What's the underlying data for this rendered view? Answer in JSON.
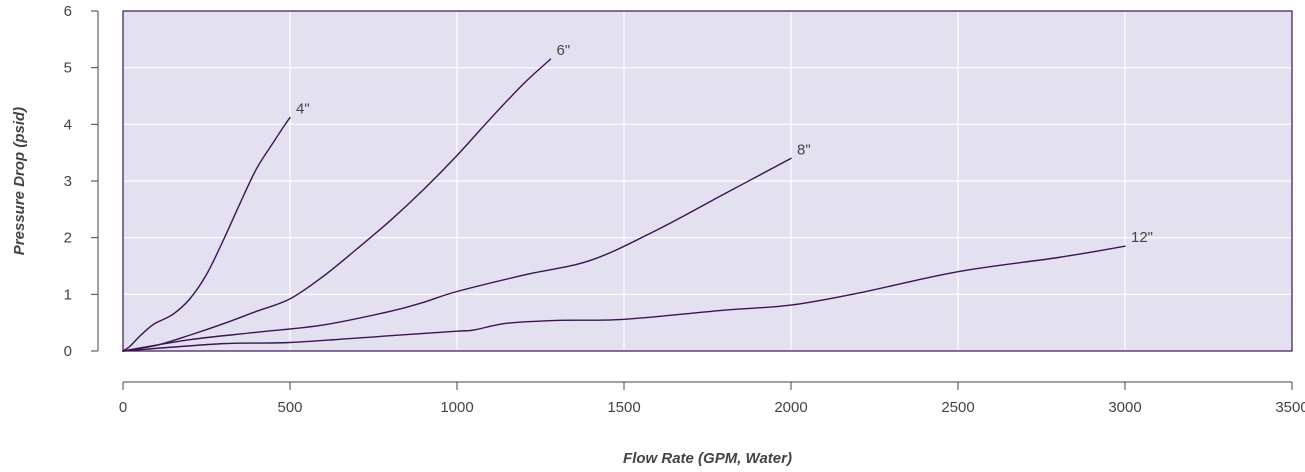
{
  "chart_data": {
    "type": "line",
    "title": "",
    "xlabel": "Flow Rate (GPM, Water)",
    "ylabel": "Pressure Drop (psid)",
    "xlim": [
      0,
      3500
    ],
    "ylim": [
      0,
      6
    ],
    "x_ticks": [
      0,
      500,
      1000,
      1500,
      2000,
      2500,
      3000,
      3500
    ],
    "y_ticks": [
      0,
      1,
      2,
      3,
      4,
      5,
      6
    ],
    "grid": true,
    "legend": "none",
    "colors": {
      "plot_background": "#e3e0ef",
      "line": "#3b1452",
      "grid": "#ffffff",
      "axis": "#444444"
    },
    "series": [
      {
        "name": "4\"",
        "x": [
          0,
          20,
          50,
          80,
          100,
          150,
          200,
          250,
          300,
          350,
          400,
          450,
          480,
          500
        ],
        "y": [
          0,
          0.08,
          0.26,
          0.42,
          0.5,
          0.65,
          0.92,
          1.35,
          1.95,
          2.6,
          3.22,
          3.68,
          3.95,
          4.12
        ]
      },
      {
        "name": "6\"",
        "x": [
          0,
          100,
          200,
          300,
          400,
          500,
          600,
          700,
          800,
          900,
          1000,
          1100,
          1200,
          1280
        ],
        "y": [
          0,
          0.1,
          0.28,
          0.48,
          0.7,
          0.92,
          1.32,
          1.8,
          2.3,
          2.85,
          3.45,
          4.1,
          4.72,
          5.15
        ]
      },
      {
        "name": "8\"",
        "x": [
          0,
          200,
          400,
          600,
          800,
          900,
          1000,
          1200,
          1400,
          1600,
          1800,
          2000
        ],
        "y": [
          0,
          0.2,
          0.33,
          0.46,
          0.7,
          0.86,
          1.05,
          1.34,
          1.6,
          2.14,
          2.77,
          3.4
        ]
      },
      {
        "name": "12\"",
        "x": [
          0,
          300,
          500,
          800,
          1000,
          1050,
          1150,
          1300,
          1500,
          1800,
          2000,
          2200,
          2500,
          2800,
          3000
        ],
        "y": [
          0,
          0.13,
          0.15,
          0.27,
          0.35,
          0.37,
          0.49,
          0.54,
          0.56,
          0.72,
          0.81,
          1.02,
          1.4,
          1.65,
          1.85
        ]
      }
    ]
  }
}
